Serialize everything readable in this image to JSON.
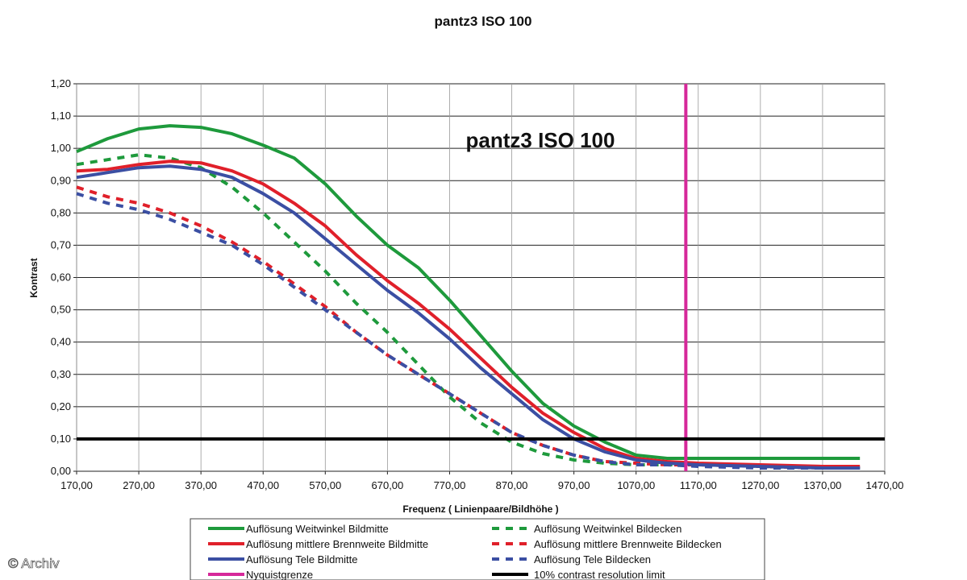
{
  "chart_data": {
    "type": "line",
    "title": "pantz3 ISO 100",
    "inner_title": "pantz3 ISO 100",
    "xlabel": "Frequenz ( Linienpaare/Bildhöhe )",
    "ylabel": "Kontrast",
    "xlim": [
      170,
      1470
    ],
    "ylim": [
      0,
      1.2
    ],
    "x_ticks": [
      "170,00",
      "270,00",
      "370,00",
      "470,00",
      "570,00",
      "670,00",
      "770,00",
      "870,00",
      "970,00",
      "1070,00",
      "1170,00",
      "1270,00",
      "1370,00",
      "1470,00"
    ],
    "y_ticks": [
      "0,00",
      "0,10",
      "0,20",
      "0,30",
      "0,40",
      "0,50",
      "0,60",
      "0,70",
      "0,80",
      "0,90",
      "1,00",
      "1,10",
      "1,20"
    ],
    "grid": true,
    "legend_position": "bottom",
    "series": [
      {
        "name": "Auflösung Weitwinkel Bildmitte",
        "color": "#1e9a3c",
        "style": "solid",
        "x": [
          170,
          220,
          270,
          320,
          370,
          420,
          470,
          520,
          570,
          620,
          670,
          720,
          770,
          820,
          870,
          920,
          970,
          1020,
          1070,
          1120,
          1170,
          1270,
          1370,
          1430
        ],
        "y": [
          0.99,
          1.03,
          1.06,
          1.07,
          1.065,
          1.045,
          1.01,
          0.97,
          0.89,
          0.79,
          0.7,
          0.63,
          0.53,
          0.42,
          0.31,
          0.21,
          0.14,
          0.09,
          0.05,
          0.04,
          0.04,
          0.04,
          0.04,
          0.04
        ]
      },
      {
        "name": "Auflösung mittlere Brennweite Bildmitte",
        "color": "#e0202a",
        "style": "solid",
        "x": [
          170,
          220,
          270,
          320,
          370,
          420,
          470,
          520,
          570,
          620,
          670,
          720,
          770,
          820,
          870,
          920,
          970,
          1020,
          1070,
          1120,
          1170,
          1270,
          1370,
          1430
        ],
        "y": [
          0.93,
          0.935,
          0.95,
          0.96,
          0.955,
          0.93,
          0.89,
          0.83,
          0.76,
          0.67,
          0.59,
          0.52,
          0.44,
          0.35,
          0.26,
          0.18,
          0.12,
          0.07,
          0.04,
          0.03,
          0.025,
          0.02,
          0.015,
          0.015
        ]
      },
      {
        "name": "Auflösung Tele Bildmitte",
        "color": "#3b4fa3",
        "style": "solid",
        "x": [
          170,
          220,
          270,
          320,
          370,
          420,
          470,
          520,
          570,
          620,
          670,
          720,
          770,
          820,
          870,
          920,
          970,
          1020,
          1070,
          1120,
          1170,
          1270,
          1370,
          1430
        ],
        "y": [
          0.91,
          0.925,
          0.94,
          0.945,
          0.935,
          0.91,
          0.86,
          0.8,
          0.72,
          0.64,
          0.56,
          0.49,
          0.41,
          0.32,
          0.24,
          0.16,
          0.1,
          0.06,
          0.035,
          0.025,
          0.02,
          0.015,
          0.01,
          0.01
        ]
      },
      {
        "name": "Auflösung Weitwinkel Bildecken",
        "color": "#1e9a3c",
        "style": "dashed",
        "x": [
          170,
          220,
          270,
          320,
          370,
          420,
          470,
          520,
          570,
          620,
          670,
          720,
          770,
          820,
          870,
          920,
          970,
          1020,
          1070,
          1120,
          1170,
          1270,
          1370,
          1430
        ],
        "y": [
          0.95,
          0.965,
          0.98,
          0.97,
          0.94,
          0.88,
          0.8,
          0.71,
          0.62,
          0.52,
          0.43,
          0.33,
          0.23,
          0.15,
          0.09,
          0.055,
          0.035,
          0.025,
          0.02,
          0.02,
          0.02,
          0.015,
          0.01,
          0.01
        ]
      },
      {
        "name": "Auflösung mittlere Brennweite Bildecken",
        "color": "#e0202a",
        "style": "dashed",
        "x": [
          170,
          220,
          270,
          320,
          370,
          420,
          470,
          520,
          570,
          620,
          670,
          720,
          770,
          820,
          870,
          920,
          970,
          1020,
          1070,
          1120,
          1170,
          1270,
          1370,
          1430
        ],
        "y": [
          0.88,
          0.85,
          0.83,
          0.8,
          0.76,
          0.71,
          0.65,
          0.58,
          0.51,
          0.43,
          0.36,
          0.3,
          0.24,
          0.18,
          0.12,
          0.08,
          0.05,
          0.03,
          0.025,
          0.02,
          0.02,
          0.015,
          0.01,
          0.01
        ]
      },
      {
        "name": "Auflösung Tele Bildecken",
        "color": "#3b4fa3",
        "style": "dashed",
        "x": [
          170,
          220,
          270,
          320,
          370,
          420,
          470,
          520,
          570,
          620,
          670,
          720,
          770,
          820,
          870,
          920,
          970,
          1020,
          1070,
          1120,
          1170,
          1270,
          1370,
          1430
        ],
        "y": [
          0.86,
          0.83,
          0.81,
          0.78,
          0.74,
          0.7,
          0.64,
          0.57,
          0.5,
          0.43,
          0.36,
          0.3,
          0.24,
          0.18,
          0.12,
          0.08,
          0.05,
          0.03,
          0.02,
          0.02,
          0.015,
          0.01,
          0.01,
          0.01
        ]
      },
      {
        "name": "Nyquistgrenze",
        "color": "#d6289a",
        "style": "solid",
        "type": "vertical",
        "x_value": 1150
      },
      {
        "name": "10% contrast resolution limit",
        "color": "#000000",
        "style": "solid",
        "type": "horizontal",
        "y_value": 0.1
      }
    ],
    "legend_left": [
      {
        "label": "Auflösung Weitwinkel Bildmitte",
        "color": "#1e9a3c",
        "style": "solid"
      },
      {
        "label": "Auflösung mittlere Brennweite Bildmitte",
        "color": "#e0202a",
        "style": "solid"
      },
      {
        "label": "Auflösung Tele Bildmitte",
        "color": "#3b4fa3",
        "style": "solid"
      },
      {
        "label": "Nyquistgrenze",
        "color": "#d6289a",
        "style": "solid"
      }
    ],
    "legend_right": [
      {
        "label": "Auflösung Weitwinkel Bildecken",
        "color": "#1e9a3c",
        "style": "dashed"
      },
      {
        "label": "Auflösung mittlere Brennweite Bildecken",
        "color": "#e0202a",
        "style": "dashed"
      },
      {
        "label": "Auflösung Tele Bildecken",
        "color": "#3b4fa3",
        "style": "dashed"
      },
      {
        "label": "10% contrast resolution limit",
        "color": "#000000",
        "style": "solid"
      }
    ]
  },
  "watermark": "© Archiv"
}
